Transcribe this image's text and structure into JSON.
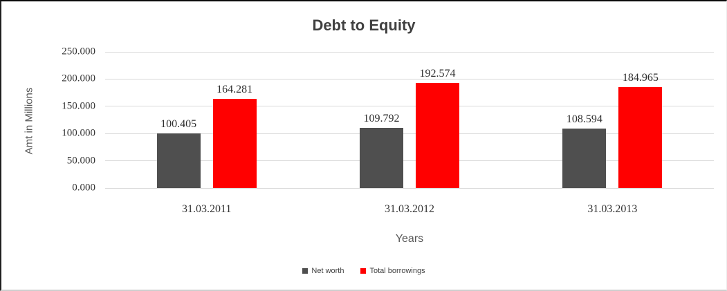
{
  "chart_data": {
    "type": "bar",
    "title": "Debt to Equity",
    "xlabel": "Years",
    "ylabel": "Amt in Millions",
    "ylim": [
      0,
      250
    ],
    "ytick_step": 50,
    "yticks": [
      "250.000",
      "200.000",
      "150.000",
      "100.000",
      "50.000",
      "0.000"
    ],
    "grid": "horizontal",
    "gridline_color": "#d9d9d9",
    "legend_position": "bottom-center",
    "categories": [
      "31.03.2011",
      "31.03.2012",
      "31.03.2013"
    ],
    "series": [
      {
        "name": "Net worth",
        "color": "#4f4f4f",
        "values": [
          100.405,
          109.792,
          108.594
        ],
        "labels": [
          "100.405",
          "109.792",
          "108.594"
        ]
      },
      {
        "name": "Total borrowings",
        "color": "#ff0000",
        "values": [
          164.281,
          192.574,
          184.965
        ],
        "labels": [
          "164.281",
          "192.574",
          "184.965"
        ]
      }
    ]
  }
}
